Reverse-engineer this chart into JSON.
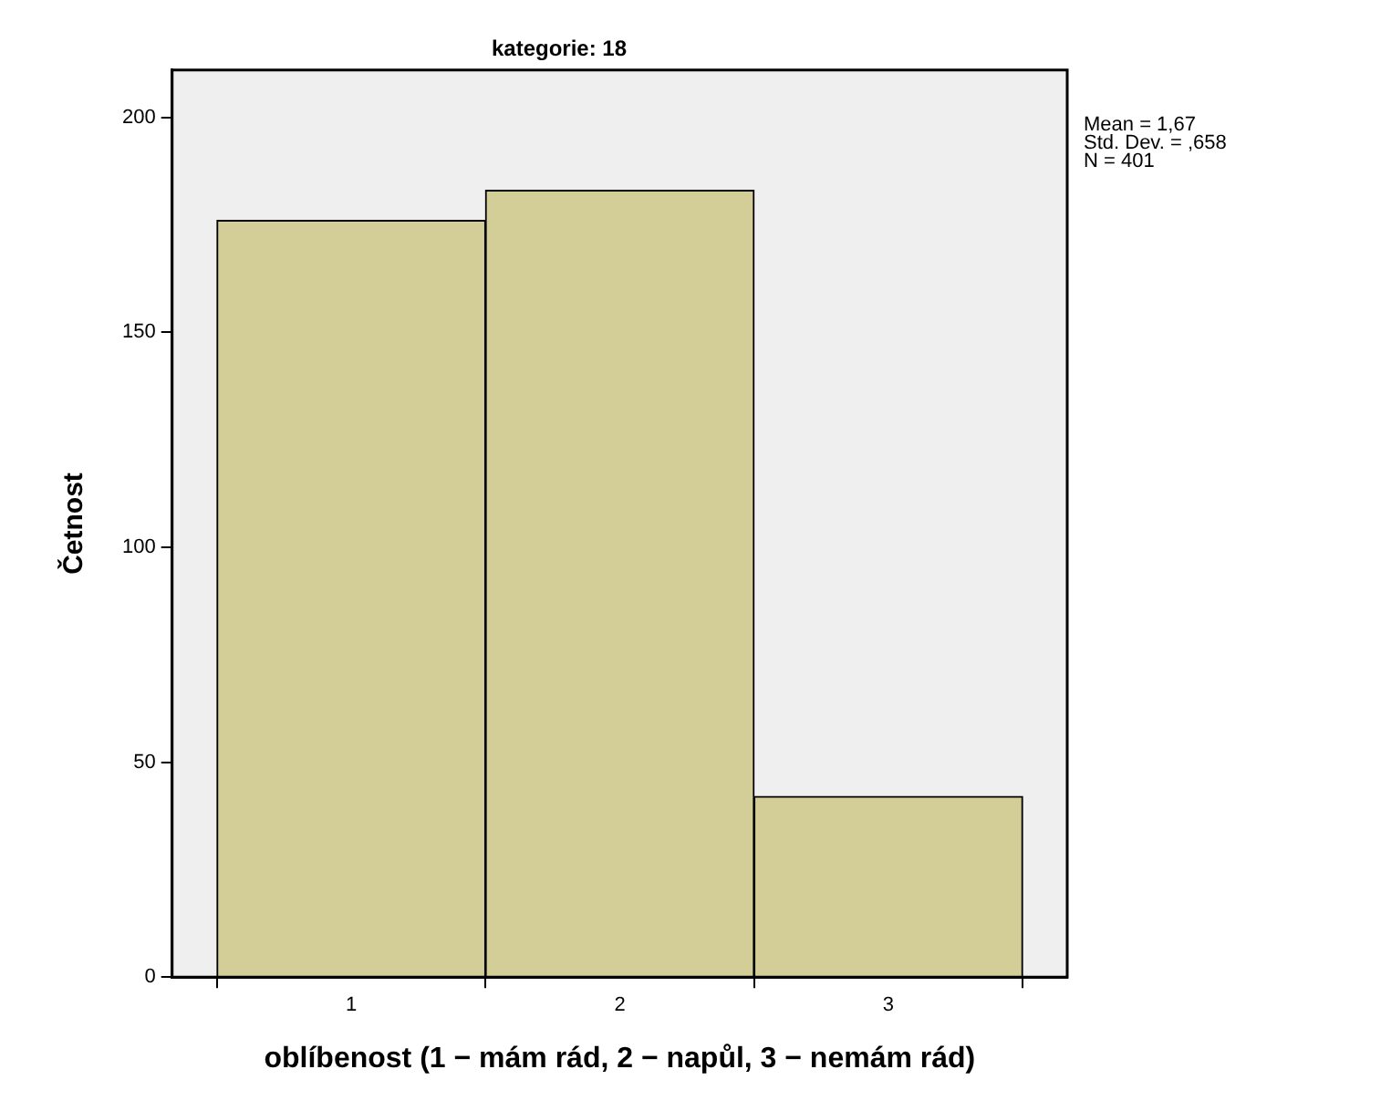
{
  "chart_data": {
    "type": "histogram",
    "title": "kategorie: 18",
    "xlabel": "oblíbenost (1 − mám rád, 2 − napůl, 3 − nemám rád)",
    "ylabel": "Četnost",
    "bins": [
      0.5,
      1.5,
      2.5,
      3.5
    ],
    "values": [
      176,
      183,
      42
    ],
    "color": "#d3cd97",
    "xlim": [
      0.333,
      3.666
    ],
    "xticks": [
      1,
      2,
      3
    ],
    "ylim": [
      0,
      211
    ],
    "yticks": [
      0,
      50,
      100,
      150,
      200
    ],
    "grid": false,
    "legend": false,
    "annotations": [
      "Mean = 1,67",
      "Std. Dev. = ,658",
      "N = 401"
    ]
  }
}
